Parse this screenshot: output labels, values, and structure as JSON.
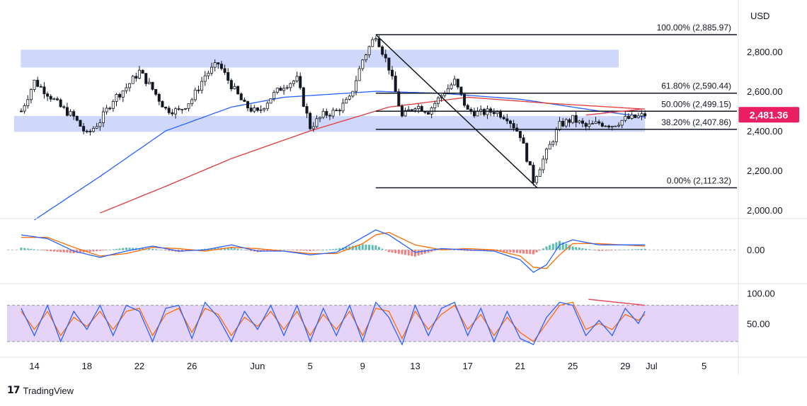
{
  "chart_data": {
    "type": "candlestick",
    "currency": "USD",
    "price_axis": {
      "min": 2000,
      "max": 2900,
      "ticks": [
        "2,000.00",
        "2,200.00",
        "2,400.00",
        "2,600.00",
        "2,800.00"
      ]
    },
    "last_price": "2,481.36",
    "x_ticks": [
      {
        "label": "14",
        "day": 1
      },
      {
        "label": "18",
        "day": 5
      },
      {
        "label": "22",
        "day": 9
      },
      {
        "label": "26",
        "day": 13
      },
      {
        "label": "Jun",
        "day": 18
      },
      {
        "label": "5",
        "day": 22
      },
      {
        "label": "9",
        "day": 26
      },
      {
        "label": "13",
        "day": 30
      },
      {
        "label": "17",
        "day": 34
      },
      {
        "label": "21",
        "day": 38
      },
      {
        "label": "25",
        "day": 42
      },
      {
        "label": "29",
        "day": 46
      },
      {
        "label": "Jul",
        "day": 48
      },
      {
        "label": "5",
        "day": 52
      }
    ],
    "price_keypoints": [
      [
        0,
        2500
      ],
      [
        1,
        2650
      ],
      [
        2,
        2590
      ],
      [
        3,
        2520
      ],
      [
        4,
        2470
      ],
      [
        5,
        2380
      ],
      [
        6,
        2450
      ],
      [
        7,
        2560
      ],
      [
        8,
        2620
      ],
      [
        9,
        2700
      ],
      [
        10,
        2610
      ],
      [
        11,
        2510
      ],
      [
        12,
        2500
      ],
      [
        13,
        2560
      ],
      [
        14,
        2680
      ],
      [
        15,
        2740
      ],
      [
        16,
        2630
      ],
      [
        17,
        2530
      ],
      [
        18,
        2490
      ],
      [
        19,
        2570
      ],
      [
        20,
        2630
      ],
      [
        21,
        2660
      ],
      [
        22,
        2420
      ],
      [
        23,
        2480
      ],
      [
        24,
        2500
      ],
      [
        25,
        2560
      ],
      [
        26,
        2760
      ],
      [
        27,
        2886
      ],
      [
        28,
        2720
      ],
      [
        29,
        2470
      ],
      [
        30,
        2530
      ],
      [
        31,
        2500
      ],
      [
        32,
        2580
      ],
      [
        33,
        2650
      ],
      [
        34,
        2500
      ],
      [
        35,
        2490
      ],
      [
        36,
        2500
      ],
      [
        37,
        2470
      ],
      [
        38,
        2380
      ],
      [
        39,
        2150
      ],
      [
        40,
        2290
      ],
      [
        41,
        2430
      ],
      [
        42,
        2460
      ],
      [
        43,
        2420
      ],
      [
        44,
        2440
      ],
      [
        45,
        2430
      ],
      [
        46,
        2460
      ],
      [
        47,
        2470
      ],
      [
        47.5,
        2481
      ]
    ],
    "moving_averages": [
      {
        "color": "#2962ff",
        "points": [
          [
            1,
            1950
          ],
          [
            6,
            2170
          ],
          [
            11,
            2400
          ],
          [
            16,
            2520
          ],
          [
            20,
            2570
          ],
          [
            27,
            2600
          ],
          [
            32,
            2590
          ],
          [
            38,
            2560
          ],
          [
            44,
            2500
          ],
          [
            47.5,
            2470
          ]
        ]
      },
      {
        "color": "#e03a3a",
        "points": [
          [
            6,
            1985
          ],
          [
            11,
            2120
          ],
          [
            16,
            2260
          ],
          [
            22,
            2400
          ],
          [
            28,
            2520
          ],
          [
            34,
            2570
          ],
          [
            40,
            2540
          ],
          [
            47.5,
            2510
          ]
        ]
      }
    ],
    "zones": [
      {
        "from": 2720,
        "to": 2810,
        "start_day": 0.5,
        "end_day": 45.5,
        "color": "#cfd8fb"
      },
      {
        "from": 2395,
        "to": 2475,
        "start_day": 0,
        "end_day": 47.5,
        "color": "#cfd8fb"
      }
    ],
    "fibonacci": [
      {
        "label": "100.00% (2,885.97)",
        "price": 2885.97
      },
      {
        "label": "61.80% (2,590.44)",
        "price": 2590.44
      },
      {
        "label": "50.00% (2,499.15)",
        "price": 2499.15
      },
      {
        "label": "38.20% (2,407.86)",
        "price": 2407.86
      },
      {
        "label": "0.00% (2,112.32)",
        "price": 2112.32
      }
    ],
    "fib_start_day": 27,
    "macd": {
      "zero_label": "0.00",
      "macd_keypoints": [
        [
          0,
          60
        ],
        [
          2,
          45
        ],
        [
          4,
          -5
        ],
        [
          6,
          -30
        ],
        [
          8,
          -5
        ],
        [
          10,
          15
        ],
        [
          12,
          -5
        ],
        [
          14,
          0
        ],
        [
          16,
          20
        ],
        [
          18,
          -5
        ],
        [
          20,
          -5
        ],
        [
          22,
          -20
        ],
        [
          24,
          -10
        ],
        [
          26,
          50
        ],
        [
          27,
          80
        ],
        [
          28,
          60
        ],
        [
          30,
          -10
        ],
        [
          32,
          5
        ],
        [
          34,
          0
        ],
        [
          36,
          -5
        ],
        [
          38,
          -40
        ],
        [
          39,
          -90
        ],
        [
          40,
          -60
        ],
        [
          41,
          20
        ],
        [
          42,
          40
        ],
        [
          44,
          20
        ],
        [
          47.5,
          20
        ]
      ],
      "signal_keypoints": [
        [
          0,
          50
        ],
        [
          2,
          50
        ],
        [
          4,
          10
        ],
        [
          6,
          -25
        ],
        [
          8,
          -15
        ],
        [
          10,
          10
        ],
        [
          12,
          5
        ],
        [
          14,
          -5
        ],
        [
          16,
          10
        ],
        [
          18,
          5
        ],
        [
          20,
          -5
        ],
        [
          22,
          -15
        ],
        [
          24,
          -15
        ],
        [
          26,
          25
        ],
        [
          27,
          60
        ],
        [
          28,
          70
        ],
        [
          30,
          20
        ],
        [
          32,
          0
        ],
        [
          34,
          5
        ],
        [
          36,
          0
        ],
        [
          38,
          -25
        ],
        [
          39,
          -70
        ],
        [
          40,
          -75
        ],
        [
          41,
          -20
        ],
        [
          42,
          25
        ],
        [
          44,
          25
        ],
        [
          47.5,
          15
        ]
      ],
      "range": [
        -110,
        100
      ]
    },
    "stochastic": {
      "ticks": [
        "100.00",
        "50.00"
      ],
      "range": [
        0,
        110
      ],
      "overbought": 80,
      "oversold": 20,
      "k_keypoints": [
        [
          0,
          75
        ],
        [
          1,
          30
        ],
        [
          2,
          80
        ],
        [
          3,
          20
        ],
        [
          4,
          70
        ],
        [
          5,
          40
        ],
        [
          6,
          80
        ],
        [
          7,
          30
        ],
        [
          8,
          80
        ],
        [
          9,
          70
        ],
        [
          10,
          20
        ],
        [
          11,
          75
        ],
        [
          12,
          80
        ],
        [
          13,
          25
        ],
        [
          14,
          85
        ],
        [
          15,
          60
        ],
        [
          16,
          20
        ],
        [
          17,
          70
        ],
        [
          18,
          40
        ],
        [
          19,
          80
        ],
        [
          20,
          30
        ],
        [
          21,
          80
        ],
        [
          22,
          20
        ],
        [
          23,
          75
        ],
        [
          24,
          30
        ],
        [
          25,
          80
        ],
        [
          26,
          20
        ],
        [
          27,
          85
        ],
        [
          28,
          60
        ],
        [
          29,
          15
        ],
        [
          30,
          80
        ],
        [
          31,
          30
        ],
        [
          32,
          75
        ],
        [
          33,
          85
        ],
        [
          34,
          30
        ],
        [
          35,
          75
        ],
        [
          36,
          20
        ],
        [
          37,
          70
        ],
        [
          38,
          25
        ],
        [
          39,
          15
        ],
        [
          40,
          60
        ],
        [
          41,
          85
        ],
        [
          42,
          80
        ],
        [
          43,
          30
        ],
        [
          44,
          55
        ],
        [
          45,
          30
        ],
        [
          46,
          75
        ],
        [
          47,
          50
        ],
        [
          47.5,
          70
        ]
      ],
      "d_keypoints": [
        [
          0,
          70
        ],
        [
          1,
          40
        ],
        [
          2,
          70
        ],
        [
          3,
          30
        ],
        [
          4,
          60
        ],
        [
          5,
          45
        ],
        [
          6,
          70
        ],
        [
          7,
          40
        ],
        [
          8,
          70
        ],
        [
          9,
          75
        ],
        [
          10,
          30
        ],
        [
          11,
          65
        ],
        [
          12,
          75
        ],
        [
          13,
          35
        ],
        [
          14,
          75
        ],
        [
          15,
          65
        ],
        [
          16,
          30
        ],
        [
          17,
          60
        ],
        [
          18,
          45
        ],
        [
          19,
          70
        ],
        [
          20,
          40
        ],
        [
          21,
          70
        ],
        [
          22,
          30
        ],
        [
          23,
          65
        ],
        [
          24,
          40
        ],
        [
          25,
          70
        ],
        [
          26,
          30
        ],
        [
          27,
          75
        ],
        [
          28,
          70
        ],
        [
          29,
          25
        ],
        [
          30,
          70
        ],
        [
          31,
          40
        ],
        [
          32,
          65
        ],
        [
          33,
          80
        ],
        [
          34,
          40
        ],
        [
          35,
          65
        ],
        [
          36,
          30
        ],
        [
          37,
          60
        ],
        [
          38,
          35
        ],
        [
          39,
          20
        ],
        [
          40,
          50
        ],
        [
          41,
          80
        ],
        [
          42,
          85
        ],
        [
          43,
          40
        ],
        [
          44,
          50
        ],
        [
          45,
          40
        ],
        [
          46,
          65
        ],
        [
          47,
          55
        ],
        [
          47.5,
          65
        ]
      ]
    },
    "divergence_lines_color": "#e84a5f"
  },
  "footer": {
    "brand": "TradingView",
    "logo_text": "17"
  }
}
